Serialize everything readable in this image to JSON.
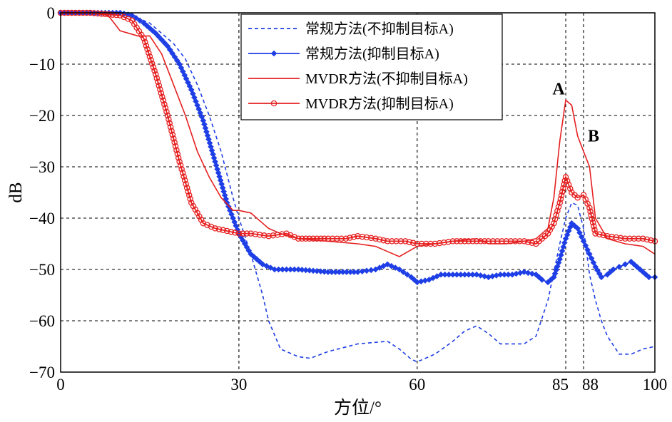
{
  "chart_data": {
    "type": "line",
    "title": "",
    "xlabel": "方位/°",
    "ylabel": "dB",
    "xlim": [
      0,
      100
    ],
    "ylim": [
      -70,
      0
    ],
    "grid": "dashed at ticks",
    "legend_position": "top-center",
    "x_ticks": [
      0,
      30,
      60,
      85,
      88,
      100
    ],
    "x_tick_labels": [
      "0",
      "30",
      "60",
      "85",
      "88",
      "100"
    ],
    "y_ticks": [
      0,
      -10,
      -20,
      -30,
      -40,
      -50,
      -60,
      -70
    ],
    "y_tick_labels": [
      "0",
      "−10",
      "−20",
      "−30",
      "−40",
      "−50",
      "−60",
      "−70"
    ],
    "annotations": [
      {
        "text": "A",
        "x": 85,
        "y": -17
      },
      {
        "text": "B",
        "x": 88,
        "y": -27
      }
    ],
    "series": [
      {
        "name": "常规方法(不抑制目标A)",
        "color": "#1f3fe6",
        "style": "dashed",
        "marker": "none",
        "x": [
          0,
          5,
          10,
          12,
          15,
          17,
          19,
          21,
          23,
          25,
          27,
          29,
          30,
          32,
          34,
          35,
          37,
          40,
          42,
          45,
          50,
          55,
          57,
          59,
          60,
          63,
          66,
          68,
          70,
          72,
          74,
          76,
          78,
          80,
          82,
          84,
          85,
          86,
          87,
          88,
          89,
          90,
          91,
          92,
          94,
          96,
          98,
          100
        ],
        "y": [
          0,
          0,
          0,
          -0.5,
          -2,
          -4,
          -6,
          -9,
          -14,
          -20,
          -27,
          -36,
          -40,
          -47,
          -55,
          -60,
          -65.5,
          -67,
          -67.3,
          -66,
          -64.5,
          -64,
          -65.5,
          -67.5,
          -68,
          -66.5,
          -64,
          -62,
          -61,
          -62.5,
          -64.5,
          -64.5,
          -64.5,
          -63,
          -56,
          -45,
          -40,
          -37,
          -37.5,
          -42,
          -51,
          -56,
          -60,
          -63,
          -66.5,
          -66.5,
          -65.5,
          -65
        ]
      },
      {
        "name": "常规方法(抑制目标A)",
        "color": "#1f3fe6",
        "style": "solid",
        "marker": "diamond",
        "x": [
          0,
          5,
          10,
          12,
          14,
          16,
          18,
          20,
          22,
          24,
          26,
          28,
          30,
          32,
          34,
          36,
          40,
          45,
          50,
          53,
          55,
          57,
          59,
          60,
          62,
          64,
          66,
          68,
          70,
          72,
          74,
          76,
          78,
          80,
          81,
          82,
          83,
          84,
          85,
          86,
          87,
          88,
          89,
          90,
          91,
          92,
          93,
          94,
          95,
          96,
          97,
          98,
          99,
          100
        ],
        "y": [
          0,
          0,
          0,
          -0.5,
          -2,
          -4,
          -6.5,
          -10,
          -15,
          -21,
          -29,
          -37,
          -43,
          -47,
          -49,
          -50,
          -50,
          -50.5,
          -50.5,
          -50,
          -49,
          -50,
          -51.5,
          -52.5,
          -52,
          -51,
          -51,
          -51,
          -51,
          -51.5,
          -51,
          -51,
          -50.5,
          -51,
          -52,
          -52.5,
          -51.5,
          -48,
          -44,
          -41,
          -42,
          -44.5,
          -47,
          -49.5,
          -51.5,
          -51,
          -50,
          -49.5,
          -49,
          -48.5,
          -49.5,
          -50.5,
          -51.5,
          -51.5
        ]
      },
      {
        "name": "MVDR方法(不抑制目标A)",
        "color": "#e62020",
        "style": "solid",
        "marker": "none",
        "x": [
          0,
          5,
          8,
          9,
          10,
          13,
          15,
          17,
          19,
          21,
          23,
          25,
          27,
          29,
          30,
          32,
          34,
          35,
          37,
          40,
          45,
          50,
          53,
          55,
          57,
          60,
          63,
          66,
          70,
          72,
          75,
          78,
          80,
          82,
          83,
          84,
          85,
          86,
          87,
          88,
          89,
          90,
          92,
          95,
          98,
          100
        ],
        "y": [
          0,
          0,
          -0.5,
          -2,
          -3.5,
          -4.5,
          -4.5,
          -8,
          -14,
          -20,
          -27,
          -32,
          -36,
          -38.5,
          -38.5,
          -39,
          -41,
          -42,
          -43,
          -44,
          -44.5,
          -45,
          -45.5,
          -46.5,
          -47.5,
          -45.5,
          -45,
          -44.5,
          -44,
          -45,
          -45,
          -44.5,
          -44,
          -42,
          -36,
          -25,
          -17,
          -18,
          -24,
          -27,
          -30,
          -40,
          -44,
          -45,
          -45.5,
          -47
        ]
      },
      {
        "name": "MVDR方法(抑制目标A)",
        "color": "#e62020",
        "style": "solid",
        "marker": "circle",
        "x": [
          0,
          5,
          10,
          12,
          14,
          16,
          18,
          20,
          22,
          24,
          26,
          28,
          30,
          32,
          35,
          38,
          40,
          45,
          48,
          50,
          53,
          55,
          58,
          60,
          63,
          66,
          70,
          72,
          75,
          78,
          80,
          82,
          83,
          84,
          85,
          86,
          87,
          88,
          89,
          90,
          92,
          95,
          98,
          100
        ],
        "y": [
          0,
          0,
          -0.5,
          -1.5,
          -5,
          -12,
          -20,
          -29,
          -37,
          -41,
          -42,
          -42.5,
          -43,
          -43,
          -43.5,
          -43,
          -44,
          -44,
          -44,
          -43.5,
          -44,
          -44.5,
          -44.5,
          -45,
          -45,
          -44.5,
          -44.5,
          -44.5,
          -44.5,
          -44.5,
          -45,
          -43,
          -41,
          -37,
          -32,
          -35,
          -36,
          -35.5,
          -38,
          -43,
          -43.5,
          -44,
          -44,
          -44.5
        ]
      }
    ]
  }
}
